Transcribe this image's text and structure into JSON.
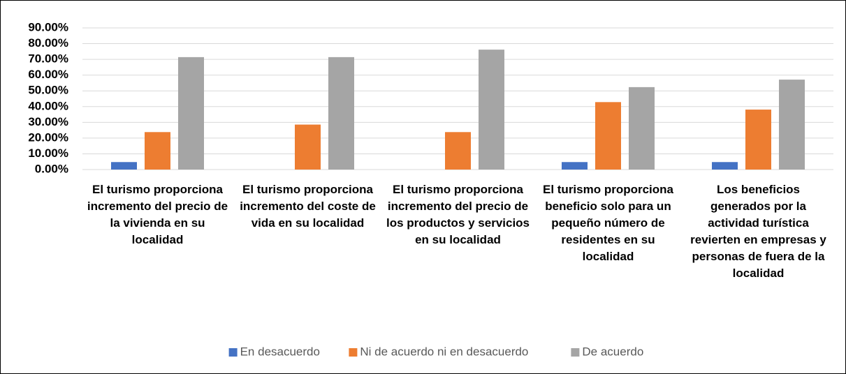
{
  "chart_data": {
    "type": "bar",
    "categories": [
      "El turismo proporciona incremento del precio de la vivienda en su localidad",
      "El turismo proporciona incremento del coste de vida en su localidad",
      "El turismo proporciona incremento del precio de los productos y servicios en su localidad",
      "El turismo proporciona beneficio solo para un pequeño número de residentes en su localidad",
      "Los beneficios generados por la actividad turística revierten en empresas y personas de fuera de la localidad"
    ],
    "series": [
      {
        "name": "En desacuerdo",
        "color": "#4472c4",
        "values": [
          4.76,
          0,
          0,
          4.76,
          4.76
        ]
      },
      {
        "name": "Ni de acuerdo ni en desacuerdo",
        "color": "#ed7d31",
        "values": [
          23.81,
          28.57,
          23.81,
          42.86,
          38.1
        ]
      },
      {
        "name": "De acuerdo",
        "color": "#a5a5a5",
        "values": [
          71.43,
          71.43,
          76.19,
          52.38,
          57.14
        ]
      }
    ],
    "ylim": [
      0,
      90
    ],
    "yticks": [
      {
        "value": 0,
        "label": "0.00%"
      },
      {
        "value": 10,
        "label": "10.00%"
      },
      {
        "value": 20,
        "label": "20.00%"
      },
      {
        "value": 30,
        "label": "30.00%"
      },
      {
        "value": 40,
        "label": "40.00%"
      },
      {
        "value": 50,
        "label": "50.00%"
      },
      {
        "value": 60,
        "label": "60.00%"
      },
      {
        "value": 70,
        "label": "70.00%"
      },
      {
        "value": 80,
        "label": "80.00%"
      },
      {
        "value": 90,
        "label": "90.00%"
      }
    ],
    "grid": true,
    "legend": "bottom"
  }
}
